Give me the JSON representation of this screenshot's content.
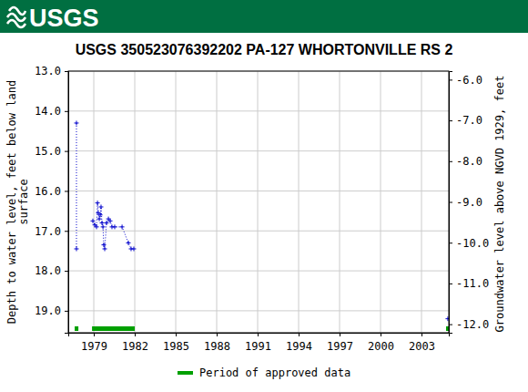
{
  "chart_data": {
    "type": "scatter",
    "title": "USGS 350523076392202 PA-127 WHORTONVILLE RS 2",
    "annotations": [
      "USGS"
    ],
    "y_label": [
      "Depth to water level, feet below land",
      "surface"
    ],
    "y2_label": "Groundwater level above NGVD 1929, feet",
    "xlim": [
      1977.13,
      2005.0
    ],
    "xticks": [
      1979,
      1982,
      1985,
      1988,
      1991,
      1994,
      1997,
      2000,
      2003
    ],
    "ylim": [
      13.0,
      19.55
    ],
    "yticks": [
      {
        "value": 13,
        "label": "13.0"
      },
      {
        "value": 14,
        "label": "14.0"
      },
      {
        "value": 15,
        "label": "15.0"
      },
      {
        "value": 16,
        "label": "16.0"
      },
      {
        "value": 17,
        "label": "17.0"
      },
      {
        "value": 18,
        "label": "18.0"
      },
      {
        "value": 19,
        "label": "19.0"
      }
    ],
    "y2lim": [
      -5.79,
      -12.21
    ],
    "y2ticks": [
      {
        "value": -6,
        "label": "-6.0"
      },
      {
        "value": -7,
        "label": "-7.0"
      },
      {
        "value": -8,
        "label": "-8.0"
      },
      {
        "value": -9,
        "label": "-9.0"
      },
      {
        "value": -10,
        "label": "-10.0"
      },
      {
        "value": -11,
        "label": "-11.0"
      },
      {
        "value": -12,
        "label": "-12.0"
      }
    ],
    "grid": true,
    "series": [
      {
        "color": "#0000cc",
        "marker": "plus",
        "line_style": "dotted",
        "x": [
          1977.73,
          1977.73
        ],
        "values": [
          14.3,
          17.45
        ]
      },
      {
        "color": "#0000cc",
        "marker": "plus",
        "line_style": "dotted",
        "x": [
          1978.93,
          1979.07,
          1979.2,
          1979.27,
          1979.33,
          1979.4,
          1979.47,
          1979.53,
          1979.6,
          1979.67,
          1979.73,
          1979.8,
          1979.93,
          1980.07,
          1980.2,
          1980.33,
          1980.53,
          1981.07,
          1981.53,
          1981.73,
          1981.93
        ],
        "values": [
          16.75,
          16.85,
          16.9,
          16.3,
          16.55,
          16.7,
          16.6,
          16.4,
          16.8,
          16.9,
          17.35,
          17.45,
          16.8,
          16.7,
          16.75,
          16.9,
          16.9,
          16.9,
          17.3,
          17.45,
          17.45
        ]
      },
      {
        "color": "#0000cc",
        "marker": "plus",
        "line_style": "dotted",
        "x": [
          2004.93
        ],
        "values": [
          19.2
        ]
      },
      {
        "name": "Period of approved data",
        "type": "period",
        "color": "#00a000",
        "start": [
          1977.6,
          1978.87,
          2004.8
        ],
        "end": [
          1977.87,
          1982.0,
          2005.0
        ]
      }
    ]
  }
}
